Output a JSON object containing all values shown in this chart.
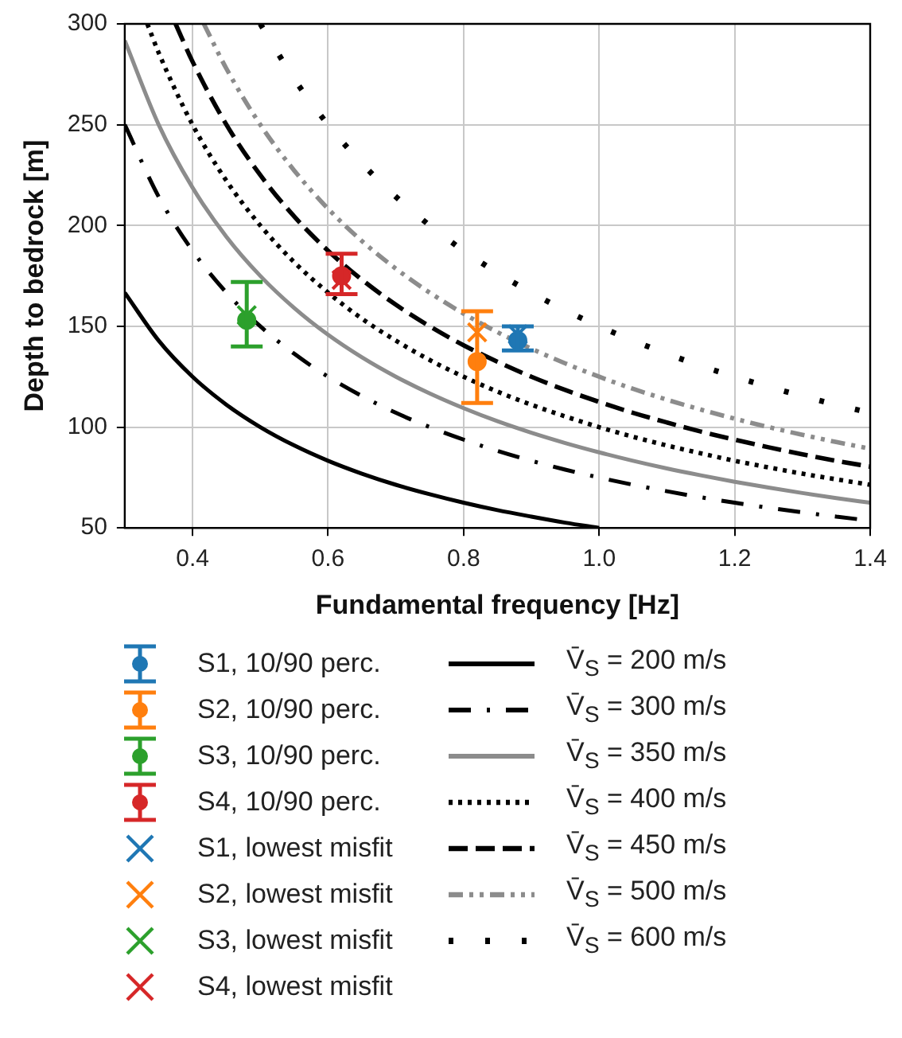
{
  "chart_data": {
    "type": "scatter",
    "xlabel": "Fundamental frequency [Hz]",
    "ylabel": "Depth to bedrock [m]",
    "xlim": [
      0.3,
      1.4
    ],
    "xticks": [
      0.4,
      0.6,
      0.8,
      {
        "value": 1,
        "label": "1.0"
      },
      1.2,
      1.4
    ],
    "ylim": [
      50,
      300
    ],
    "yticks": [
      50,
      100,
      150,
      200,
      250,
      300
    ],
    "grid": true,
    "legend": "bottom",
    "series": [
      {
        "name": "S1, 10/90 perc.",
        "color": "#1f77b4",
        "marker": "circle",
        "x": [
          0.88
        ],
        "values": [
          143
        ],
        "errors": [
          [
            138,
            150
          ]
        ]
      },
      {
        "name": "S2, 10/90 perc.",
        "color": "#ff7f0e",
        "marker": "circle",
        "x": [
          0.82
        ],
        "values": [
          132.5
        ],
        "errors": [
          [
            112,
            157.5
          ]
        ]
      },
      {
        "name": "S3, 10/90 perc.",
        "color": "#2ca02c",
        "marker": "circle",
        "x": [
          0.48
        ],
        "values": [
          153
        ],
        "errors": [
          [
            140,
            172
          ]
        ]
      },
      {
        "name": "S4, 10/90 perc.",
        "color": "#d62728",
        "marker": "circle",
        "x": [
          0.62
        ],
        "values": [
          175
        ],
        "errors": [
          [
            166,
            186
          ]
        ]
      },
      {
        "name": "S1, lowest misfit",
        "color": "#1f77b4",
        "marker": "cross",
        "x": [
          0.88
        ],
        "values": [
          146
        ]
      },
      {
        "name": "S2, lowest misfit",
        "color": "#ff7f0e",
        "marker": "cross",
        "x": [
          0.82
        ],
        "values": [
          147
        ]
      },
      {
        "name": "S3, lowest misfit",
        "color": "#2ca02c",
        "marker": "cross",
        "x": [
          0.48
        ],
        "values": [
          155.5
        ]
      },
      {
        "name": "S4, lowest misfit",
        "color": "#d62728",
        "marker": "cross",
        "x": [
          0.62
        ],
        "values": [
          173
        ]
      },
      {
        "name": "V̄$_{S}$ = 200 m/s",
        "type": "line",
        "color": "#000000",
        "line_style": "solid",
        "marker": "none",
        "x": [
          0.3,
          0.35,
          0.4,
          0.45,
          0.5,
          0.55,
          0.6,
          0.65,
          0.7,
          0.75,
          0.8,
          0.85,
          0.9,
          0.95,
          1.0
        ],
        "values": [
          166.7,
          142.9,
          125,
          111.1,
          100,
          90.9,
          83.3,
          76.9,
          71.4,
          66.7,
          62.5,
          58.8,
          55.6,
          52.6,
          50
        ]
      },
      {
        "name": "V̄$_{S}$ = 300 m/s",
        "type": "line",
        "color": "#000000",
        "line_style": "dashdot",
        "marker": "none",
        "x": [
          0.3,
          0.35,
          0.4,
          0.45,
          0.5,
          0.55,
          0.6,
          0.65,
          0.7,
          0.75,
          0.8,
          0.85,
          0.9,
          0.95,
          1.0,
          1.05,
          1.1,
          1.15,
          1.2,
          1.25,
          1.3,
          1.35,
          1.4
        ],
        "values": [
          250,
          214.3,
          187.5,
          166.7,
          150,
          136.4,
          125,
          115.4,
          107.1,
          100,
          93.8,
          88.2,
          83.3,
          78.9,
          75,
          71.4,
          68.2,
          65.2,
          62.5,
          60,
          57.7,
          55.6,
          53.6
        ]
      },
      {
        "name": "V̄$_{S}$ = 350 m/s",
        "type": "line",
        "color": "#8c8c8c",
        "line_style": "solid",
        "marker": "none",
        "x": [
          0.3,
          0.35,
          0.4,
          0.45,
          0.5,
          0.55,
          0.6,
          0.65,
          0.7,
          0.75,
          0.8,
          0.85,
          0.9,
          0.95,
          1.0,
          1.05,
          1.1,
          1.15,
          1.2,
          1.25,
          1.3,
          1.35,
          1.4
        ],
        "values": [
          291.7,
          250,
          218.8,
          194.4,
          175,
          159.1,
          145.8,
          134.6,
          125,
          116.7,
          109.4,
          102.9,
          97.2,
          92.1,
          87.5,
          83.3,
          79.5,
          76.1,
          72.9,
          70,
          67.3,
          64.8,
          62.5
        ]
      },
      {
        "name": "V̄$_{S}$ = 400 m/s",
        "type": "line",
        "color": "#000000",
        "line_style": "dotted",
        "marker": "none",
        "x": [
          0.3333,
          0.35,
          0.4,
          0.45,
          0.5,
          0.55,
          0.6,
          0.65,
          0.7,
          0.75,
          0.8,
          0.85,
          0.9,
          0.95,
          1.0,
          1.05,
          1.1,
          1.15,
          1.2,
          1.25,
          1.3,
          1.35,
          1.4
        ],
        "values": [
          300,
          285.7,
          250,
          222.2,
          200,
          181.8,
          166.7,
          153.8,
          142.9,
          133.3,
          125,
          117.6,
          111.1,
          105.3,
          100,
          95.2,
          90.9,
          87,
          83.3,
          80,
          76.9,
          74.1,
          71.4
        ]
      },
      {
        "name": "V̄$_{S}$ = 450 m/s",
        "type": "line",
        "color": "#000000",
        "line_style": "dashed",
        "marker": "none",
        "x": [
          0.375,
          0.4,
          0.45,
          0.5,
          0.55,
          0.6,
          0.65,
          0.7,
          0.75,
          0.8,
          0.85,
          0.9,
          0.95,
          1.0,
          1.05,
          1.1,
          1.15,
          1.2,
          1.25,
          1.3,
          1.35,
          1.4
        ],
        "values": [
          300,
          281.3,
          250,
          225,
          204.5,
          187.5,
          173.1,
          160.7,
          150,
          140.6,
          132.4,
          125,
          118.4,
          112.5,
          107.1,
          102.3,
          97.8,
          93.8,
          90,
          86.5,
          83.3,
          80.4
        ]
      },
      {
        "name": "V̄$_{S}$ = 500 m/s",
        "type": "line",
        "color": "#8c8c8c",
        "line_style": "dashdotdot",
        "marker": "none",
        "x": [
          0.4167,
          0.45,
          0.5,
          0.55,
          0.6,
          0.65,
          0.7,
          0.75,
          0.8,
          0.85,
          0.9,
          0.95,
          1.0,
          1.05,
          1.1,
          1.15,
          1.2,
          1.25,
          1.3,
          1.35,
          1.4
        ],
        "values": [
          300,
          277.8,
          250,
          227.3,
          208.3,
          192.3,
          178.6,
          166.7,
          156.3,
          147.1,
          138.9,
          131.6,
          125,
          119,
          113.6,
          108.7,
          104.2,
          100,
          96.2,
          92.6,
          89.3
        ]
      },
      {
        "name": "V̄$_{S}$ = 600 m/s",
        "type": "line",
        "color": "#000000",
        "line_style": "loosely dotted",
        "marker": "none",
        "x": [
          0.5,
          0.55,
          0.6,
          0.65,
          0.7,
          0.75,
          0.8,
          0.85,
          0.9,
          0.95,
          1.0,
          1.05,
          1.1,
          1.15,
          1.2,
          1.25,
          1.3,
          1.35,
          1.4
        ],
        "values": [
          300,
          272.7,
          250,
          230.8,
          214.3,
          200,
          187.5,
          176.5,
          166.7,
          157.9,
          150,
          142.9,
          136.4,
          130.4,
          125,
          120,
          115.4,
          111.1,
          107.1
        ]
      }
    ]
  }
}
